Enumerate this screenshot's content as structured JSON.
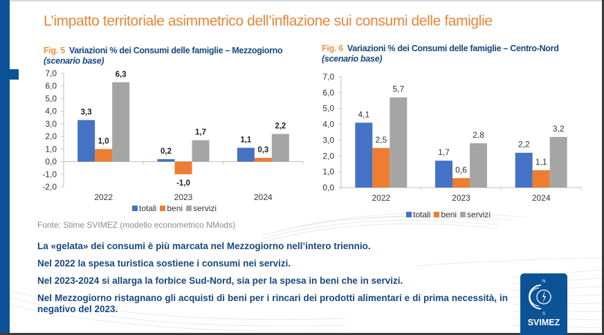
{
  "slide": {
    "title": "L’impatto territoriale asimmetrico dell’inflazione sui consumi delle famiglie",
    "source": "Fonte: Stime SVIMEZ (modello econometrico NMods)",
    "bullets": [
      "La «gelata» dei consumi è più marcata nel Mezzogiorno nell’intero triennio.",
      "Nel 2022 la spesa turistica sostiene i consumi nei servizi.",
      "Nel 2023-2024 si allarga la forbice Sud-Nord, sia per la spesa in beni che in servizi.",
      "Nel Mezzogiorno ristagnano gli acquisti di beni per i rincari dei prodotti alimentari e di prima necessità, in negativo del 2023."
    ],
    "logo": {
      "text": "SVIMEZ",
      "icon": "compass-icon",
      "north": "N",
      "south": "S"
    },
    "colors": {
      "brand_blue": "#0c5297",
      "title_orange": "#e8853a",
      "text_blue": "#17477e"
    }
  },
  "chart_data": [
    {
      "type": "bar",
      "fig_label": "Fig. 5",
      "title": "Variazioni % dei Consumi delle famiglie – Mezzogiorno",
      "subtitle": "(scenario base)",
      "xlabel": "",
      "ylabel": "",
      "categories": [
        "2022",
        "2023",
        "2024"
      ],
      "series": [
        {
          "name": "totali",
          "color": "#4472c4",
          "values": [
            3.3,
            0.2,
            1.1
          ]
        },
        {
          "name": "beni",
          "color": "#ed7d31",
          "values": [
            1.0,
            -1.0,
            0.3
          ]
        },
        {
          "name": "servizi",
          "color": "#a5a5a5",
          "values": [
            6.3,
            1.7,
            2.2
          ]
        }
      ],
      "data_labels": [
        [
          "3,3",
          "0,2",
          "1,1"
        ],
        [
          "1,0",
          "-1,0",
          "0,3"
        ],
        [
          "6,3",
          "1,7",
          "2,2"
        ]
      ],
      "ylim": [
        -2.0,
        7.0
      ],
      "yticks": [
        "7,0",
        "6,0",
        "5,0",
        "4,0",
        "3,0",
        "2,0",
        "1,0",
        "0,0",
        "-1,0",
        "-2,0"
      ],
      "ytick_values": [
        7,
        6,
        5,
        4,
        3,
        2,
        1,
        0,
        -1,
        -2
      ],
      "grid": false,
      "legend": "bottom"
    },
    {
      "type": "bar",
      "fig_label": "Fig. 6",
      "title": "Variazioni % dei Consumi delle famiglie – Centro-Nord",
      "subtitle": "(scenario base)",
      "xlabel": "",
      "ylabel": "",
      "categories": [
        "2022",
        "2023",
        "2024"
      ],
      "series": [
        {
          "name": "totali",
          "color": "#4472c4",
          "values": [
            4.1,
            1.7,
            2.2
          ]
        },
        {
          "name": "beni",
          "color": "#ed7d31",
          "values": [
            2.5,
            0.6,
            1.1
          ]
        },
        {
          "name": "servizi",
          "color": "#a5a5a5",
          "values": [
            5.7,
            2.8,
            3.2
          ]
        }
      ],
      "data_labels": [
        [
          "4,1",
          "1,7",
          "2,2"
        ],
        [
          "2,5",
          "0,6",
          "1,1"
        ],
        [
          "5,7",
          "2,8",
          "3,2"
        ]
      ],
      "ylim": [
        0.0,
        7.0
      ],
      "yticks": [
        "7,0",
        "6,0",
        "5,0",
        "4,0",
        "3,0",
        "2,0",
        "1,0",
        "0,0"
      ],
      "ytick_values": [
        7,
        6,
        5,
        4,
        3,
        2,
        1,
        0
      ],
      "grid": false,
      "legend": "bottom"
    }
  ]
}
